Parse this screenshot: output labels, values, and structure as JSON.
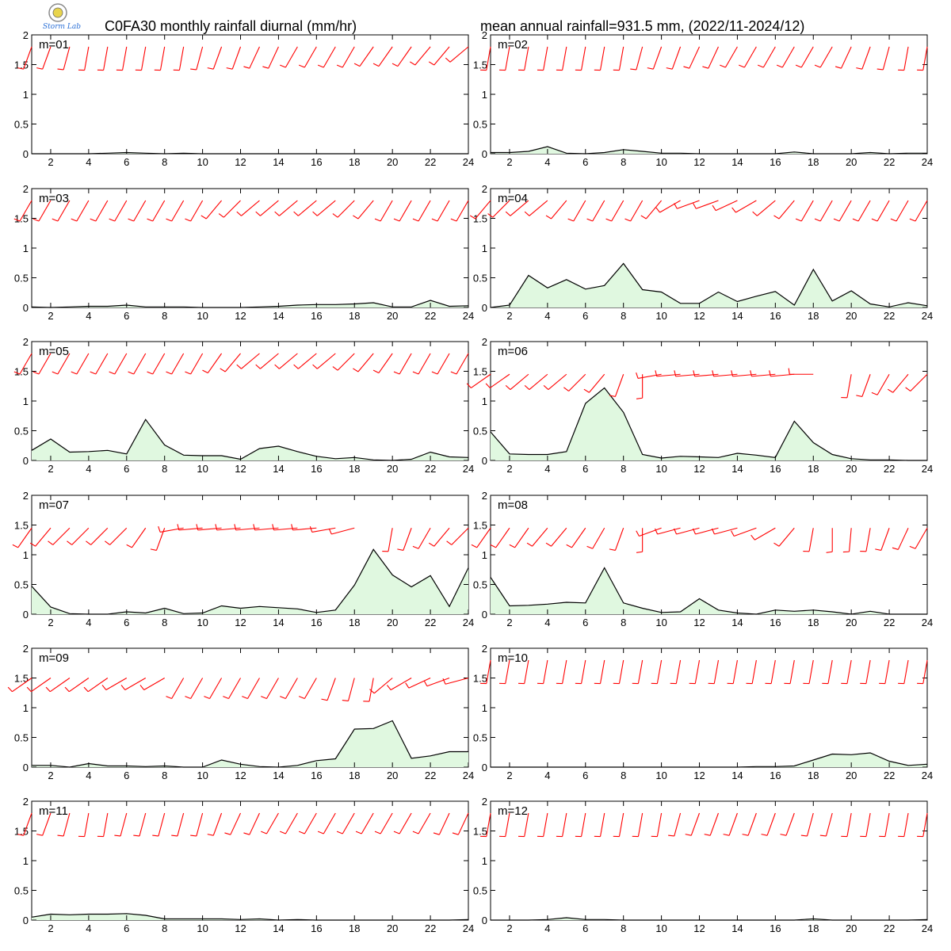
{
  "header": {
    "title_left": "C0FA30 monthly rainfall diurnal (mm/hr)",
    "title_right": "mean annual rainfall=931.5 mm, (2022/11-2024/12)",
    "logo_icon": "storm-lab-logo-icon",
    "logo_text": "Storm Lab"
  },
  "colors": {
    "fill": "#e0f8e0",
    "line": "#000000",
    "barb": "#ff0000"
  },
  "chart_data": [
    {
      "type": "area",
      "month_label": "m=01",
      "x": [
        1,
        2,
        3,
        4,
        5,
        6,
        7,
        8,
        9,
        10,
        11,
        12,
        13,
        14,
        15,
        16,
        17,
        18,
        19,
        20,
        21,
        22,
        23,
        24
      ],
      "ylim": [
        0,
        2
      ],
      "yticks": [
        "0",
        "0.5",
        "1",
        "1.5",
        "2"
      ],
      "xticks": [
        "2",
        "4",
        "6",
        "8",
        "10",
        "12",
        "14",
        "16",
        "18",
        "20",
        "22",
        "24"
      ],
      "series": [
        {
          "values": [
            0,
            0,
            0,
            0,
            0.01,
            0.02,
            0.01,
            0,
            0.01,
            0,
            0,
            0,
            0,
            0,
            0,
            0,
            0,
            0,
            0,
            0,
            0,
            0,
            0,
            0
          ]
        }
      ],
      "wind_level": 1.8,
      "wind_dir": [
        200,
        200,
        195,
        190,
        190,
        190,
        190,
        190,
        190,
        195,
        200,
        200,
        205,
        205,
        210,
        210,
        210,
        210,
        215,
        215,
        215,
        220,
        220,
        230
      ]
    },
    {
      "type": "area",
      "month_label": "m=02",
      "x": [
        1,
        2,
        3,
        4,
        5,
        6,
        7,
        8,
        9,
        10,
        11,
        12,
        13,
        14,
        15,
        16,
        17,
        18,
        19,
        20,
        21,
        22,
        23,
        24
      ],
      "ylim": [
        0,
        2
      ],
      "yticks": [
        "0",
        "0.5",
        "1",
        "1.5",
        "2"
      ],
      "xticks": [
        "2",
        "4",
        "6",
        "8",
        "10",
        "12",
        "14",
        "16",
        "18",
        "20",
        "22",
        "24"
      ],
      "series": [
        {
          "values": [
            0.02,
            0.02,
            0.04,
            0.12,
            0.01,
            0,
            0.02,
            0.07,
            0.04,
            0.01,
            0.01,
            0,
            0,
            0,
            0,
            0,
            0.03,
            0,
            0,
            0,
            0.02,
            0,
            0.01,
            0.01
          ]
        }
      ],
      "wind_level": 1.8,
      "wind_dir": [
        190,
        190,
        190,
        190,
        190,
        190,
        190,
        190,
        195,
        200,
        200,
        205,
        205,
        210,
        210,
        210,
        210,
        210,
        210,
        205,
        200,
        195,
        190,
        190
      ]
    },
    {
      "type": "area",
      "month_label": "m=03",
      "x": [
        1,
        2,
        3,
        4,
        5,
        6,
        7,
        8,
        9,
        10,
        11,
        12,
        13,
        14,
        15,
        16,
        17,
        18,
        19,
        20,
        21,
        22,
        23,
        24
      ],
      "ylim": [
        0,
        2
      ],
      "yticks": [
        "0",
        "0.5",
        "1",
        "1.5",
        "2"
      ],
      "xticks": [
        "2",
        "4",
        "6",
        "8",
        "10",
        "12",
        "14",
        "16",
        "18",
        "20",
        "22",
        "24"
      ],
      "series": [
        {
          "values": [
            0.01,
            0,
            0.01,
            0.02,
            0.02,
            0.04,
            0.01,
            0.01,
            0.01,
            0,
            0,
            0,
            0.01,
            0.02,
            0.04,
            0.05,
            0.05,
            0.06,
            0.08,
            0.01,
            0.01,
            0.12,
            0.02,
            0.03
          ]
        }
      ],
      "wind_level": 1.8,
      "wind_dir": [
        210,
        210,
        210,
        210,
        210,
        210,
        210,
        210,
        210,
        210,
        220,
        225,
        230,
        230,
        230,
        230,
        230,
        225,
        220,
        210,
        210,
        210,
        210,
        210
      ]
    },
    {
      "type": "area",
      "month_label": "m=04",
      "x": [
        1,
        2,
        3,
        4,
        5,
        6,
        7,
        8,
        9,
        10,
        11,
        12,
        13,
        14,
        15,
        16,
        17,
        18,
        19,
        20,
        21,
        22,
        23,
        24
      ],
      "ylim": [
        0,
        2
      ],
      "yticks": [
        "0",
        "0.5",
        "1",
        "1.5",
        "2"
      ],
      "xticks": [
        "2",
        "4",
        "6",
        "8",
        "10",
        "12",
        "14",
        "16",
        "18",
        "20",
        "22",
        "24"
      ],
      "series": [
        {
          "values": [
            0,
            0.04,
            0.54,
            0.33,
            0.47,
            0.31,
            0.37,
            0.74,
            0.3,
            0.26,
            0.07,
            0.07,
            0.26,
            0.1,
            0.19,
            0.27,
            0.04,
            0.64,
            0.11,
            0.28,
            0.06,
            0.01,
            0.08,
            0.03
          ]
        }
      ],
      "wind_level": 1.8,
      "wind_dir": [
        220,
        225,
        230,
        230,
        220,
        210,
        210,
        210,
        210,
        220,
        240,
        250,
        250,
        245,
        240,
        230,
        220,
        210,
        210,
        210,
        210,
        210,
        210,
        210
      ]
    },
    {
      "type": "area",
      "month_label": "m=05",
      "x": [
        1,
        2,
        3,
        4,
        5,
        6,
        7,
        8,
        9,
        10,
        11,
        12,
        13,
        14,
        15,
        16,
        17,
        18,
        19,
        20,
        21,
        22,
        23,
        24
      ],
      "ylim": [
        0,
        2
      ],
      "yticks": [
        "0",
        "0.5",
        "1",
        "1.5",
        "2"
      ],
      "xticks": [
        "2",
        "4",
        "6",
        "8",
        "10",
        "12",
        "14",
        "16",
        "18",
        "20",
        "22",
        "24"
      ],
      "series": [
        {
          "values": [
            0.17,
            0.36,
            0.14,
            0.15,
            0.17,
            0.11,
            0.69,
            0.26,
            0.09,
            0.08,
            0.08,
            0.02,
            0.2,
            0.24,
            0.15,
            0.07,
            0.03,
            0.05,
            0.01,
            0,
            0.02,
            0.14,
            0.06,
            0.05
          ]
        }
      ],
      "wind_level": 1.8,
      "wind_dir": [
        210,
        210,
        210,
        210,
        210,
        210,
        210,
        210,
        210,
        210,
        215,
        220,
        230,
        230,
        230,
        230,
        230,
        225,
        220,
        215,
        210,
        210,
        210,
        210
      ]
    },
    {
      "type": "area",
      "month_label": "m=06",
      "x": [
        1,
        2,
        3,
        4,
        5,
        6,
        7,
        8,
        9,
        10,
        11,
        12,
        13,
        14,
        15,
        16,
        17,
        18,
        19,
        20,
        21,
        22,
        23,
        24
      ],
      "ylim": [
        0,
        2
      ],
      "yticks": [
        "0",
        "0.5",
        "1",
        "1.5",
        "2"
      ],
      "xticks": [
        "2",
        "4",
        "6",
        "8",
        "10",
        "12",
        "14",
        "16",
        "18",
        "20",
        "22",
        "24"
      ],
      "series": [
        {
          "values": [
            0.48,
            0.11,
            0.1,
            0.1,
            0.15,
            0.96,
            1.22,
            0.81,
            0.1,
            0.04,
            0.07,
            0.06,
            0.05,
            0.12,
            0.09,
            0.05,
            0.66,
            0.3,
            0.1,
            0.03,
            0.01,
            0.01,
            0,
            0
          ]
        }
      ],
      "wind_level": 1.45,
      "wind_dir": [
        235,
        235,
        230,
        230,
        230,
        225,
        220,
        200,
        180,
        260,
        265,
        265,
        265,
        265,
        265,
        265,
        265,
        270,
        "",
        190,
        200,
        210,
        220,
        225
      ]
    },
    {
      "type": "area",
      "month_label": "m=07",
      "x": [
        1,
        2,
        3,
        4,
        5,
        6,
        7,
        8,
        9,
        10,
        11,
        12,
        13,
        14,
        15,
        16,
        17,
        18,
        19,
        20,
        21,
        22,
        23,
        24
      ],
      "ylim": [
        0,
        2
      ],
      "yticks": [
        "0",
        "0.5",
        "1",
        "1.5",
        "2"
      ],
      "xticks": [
        "2",
        "4",
        "6",
        "8",
        "10",
        "12",
        "14",
        "16",
        "18",
        "20",
        "22",
        "24"
      ],
      "series": [
        {
          "values": [
            0.47,
            0.12,
            0.01,
            0,
            0,
            0.04,
            0.02,
            0.1,
            0.01,
            0.02,
            0.14,
            0.1,
            0.13,
            0.11,
            0.09,
            0.03,
            0.07,
            0.49,
            1.09,
            0.66,
            0.46,
            0.65,
            0.13,
            0.78
          ]
        }
      ],
      "wind_level": 1.45,
      "wind_dir": [
        215,
        220,
        225,
        225,
        225,
        225,
        215,
        200,
        260,
        265,
        265,
        265,
        265,
        265,
        265,
        265,
        260,
        255,
        "",
        190,
        200,
        210,
        220,
        225
      ]
    },
    {
      "type": "area",
      "month_label": "m=08",
      "x": [
        1,
        2,
        3,
        4,
        5,
        6,
        7,
        8,
        9,
        10,
        11,
        12,
        13,
        14,
        15,
        16,
        17,
        18,
        19,
        20,
        21,
        22,
        23,
        24
      ],
      "ylim": [
        0,
        2
      ],
      "yticks": [
        "0",
        "0.5",
        "1",
        "1.5",
        "2"
      ],
      "xticks": [
        "2",
        "4",
        "6",
        "8",
        "10",
        "12",
        "14",
        "16",
        "18",
        "20",
        "22",
        "24"
      ],
      "series": [
        {
          "values": [
            0.62,
            0.14,
            0.15,
            0.17,
            0.2,
            0.19,
            0.78,
            0.19,
            0.1,
            0.03,
            0.04,
            0.26,
            0.07,
            0.02,
            0,
            0.07,
            0.05,
            0.07,
            0.04,
            0,
            0.05,
            0,
            0,
            0
          ]
        }
      ],
      "wind_level": 1.45,
      "wind_dir": [
        215,
        215,
        215,
        220,
        220,
        215,
        210,
        200,
        180,
        250,
        255,
        255,
        255,
        255,
        250,
        240,
        220,
        190,
        180,
        185,
        190,
        200,
        205,
        210
      ]
    },
    {
      "type": "area",
      "month_label": "m=09",
      "x": [
        1,
        2,
        3,
        4,
        5,
        6,
        7,
        8,
        9,
        10,
        11,
        12,
        13,
        14,
        15,
        16,
        17,
        18,
        19,
        20,
        21,
        22,
        23,
        24
      ],
      "ylim": [
        0,
        2
      ],
      "yticks": [
        "0",
        "0.5",
        "1",
        "1.5",
        "2"
      ],
      "xticks": [
        "2",
        "4",
        "6",
        "8",
        "10",
        "12",
        "14",
        "16",
        "18",
        "20",
        "22",
        "24"
      ],
      "series": [
        {
          "values": [
            0.03,
            0.03,
            0,
            0.06,
            0.02,
            0.02,
            0.01,
            0.02,
            0,
            0,
            0.12,
            0.05,
            0.01,
            0,
            0.03,
            0.11,
            0.14,
            0.64,
            0.65,
            0.78,
            0.15,
            0.19,
            0.26,
            0.26
          ]
        }
      ],
      "wind_level": 1.5,
      "wind_dir": [
        235,
        235,
        235,
        235,
        235,
        240,
        240,
        240,
        210,
        210,
        210,
        210,
        210,
        210,
        210,
        210,
        200,
        195,
        190,
        230,
        240,
        245,
        250,
        255
      ]
    },
    {
      "type": "area",
      "month_label": "m=10",
      "x": [
        1,
        2,
        3,
        4,
        5,
        6,
        7,
        8,
        9,
        10,
        11,
        12,
        13,
        14,
        15,
        16,
        17,
        18,
        19,
        20,
        21,
        22,
        23,
        24
      ],
      "ylim": [
        0,
        2
      ],
      "yticks": [
        "0",
        "0.5",
        "1",
        "1.5",
        "2"
      ],
      "xticks": [
        "2",
        "4",
        "6",
        "8",
        "10",
        "12",
        "14",
        "16",
        "18",
        "20",
        "22",
        "24"
      ],
      "series": [
        {
          "values": [
            0,
            0,
            0,
            0,
            0,
            0,
            0,
            0,
            0,
            0,
            0,
            0,
            0,
            0,
            0.01,
            0.01,
            0.02,
            0.12,
            0.22,
            0.21,
            0.24,
            0.1,
            0.03,
            0.05
          ]
        }
      ],
      "wind_level": 1.8,
      "wind_dir": [
        190,
        190,
        190,
        190,
        190,
        190,
        190,
        190,
        190,
        190,
        190,
        190,
        190,
        190,
        190,
        190,
        190,
        190,
        190,
        190,
        190,
        190,
        190,
        190
      ]
    },
    {
      "type": "area",
      "month_label": "m=11",
      "x": [
        1,
        2,
        3,
        4,
        5,
        6,
        7,
        8,
        9,
        10,
        11,
        12,
        13,
        14,
        15,
        16,
        17,
        18,
        19,
        20,
        21,
        22,
        23,
        24
      ],
      "ylim": [
        0,
        2
      ],
      "yticks": [
        "0",
        "0.5",
        "1",
        "1.5",
        "2"
      ],
      "xticks": [
        "2",
        "4",
        "6",
        "8",
        "10",
        "12",
        "14",
        "16",
        "18",
        "20",
        "22",
        "24"
      ],
      "series": [
        {
          "values": [
            0.05,
            0.1,
            0.09,
            0.1,
            0.1,
            0.11,
            0.08,
            0.02,
            0.02,
            0.02,
            0.02,
            0.01,
            0.02,
            0,
            0.01,
            0,
            0,
            0,
            0,
            0,
            0,
            0,
            0,
            0.01
          ]
        }
      ],
      "wind_level": 1.8,
      "wind_dir": [
        200,
        200,
        195,
        190,
        190,
        195,
        195,
        195,
        195,
        195,
        200,
        205,
        205,
        210,
        210,
        210,
        210,
        210,
        210,
        210,
        210,
        210,
        205,
        205
      ]
    },
    {
      "type": "area",
      "month_label": "m=12",
      "x": [
        1,
        2,
        3,
        4,
        5,
        6,
        7,
        8,
        9,
        10,
        11,
        12,
        13,
        14,
        15,
        16,
        17,
        18,
        19,
        20,
        21,
        22,
        23,
        24
      ],
      "ylim": [
        0,
        2
      ],
      "yticks": [
        "0",
        "0.5",
        "1",
        "1.5",
        "2"
      ],
      "xticks": [
        "2",
        "4",
        "6",
        "8",
        "10",
        "12",
        "14",
        "16",
        "18",
        "20",
        "22",
        "24"
      ],
      "series": [
        {
          "values": [
            0,
            0,
            0,
            0.01,
            0.04,
            0.01,
            0.01,
            0,
            0,
            0,
            0,
            0,
            0,
            0,
            0,
            0,
            0,
            0.02,
            0,
            0,
            0,
            0,
            0,
            0.01
          ]
        }
      ],
      "wind_level": 1.8,
      "wind_dir": [
        190,
        190,
        190,
        190,
        190,
        190,
        190,
        190,
        190,
        190,
        195,
        200,
        200,
        200,
        200,
        200,
        200,
        195,
        195,
        190,
        190,
        190,
        190,
        190
      ]
    }
  ]
}
